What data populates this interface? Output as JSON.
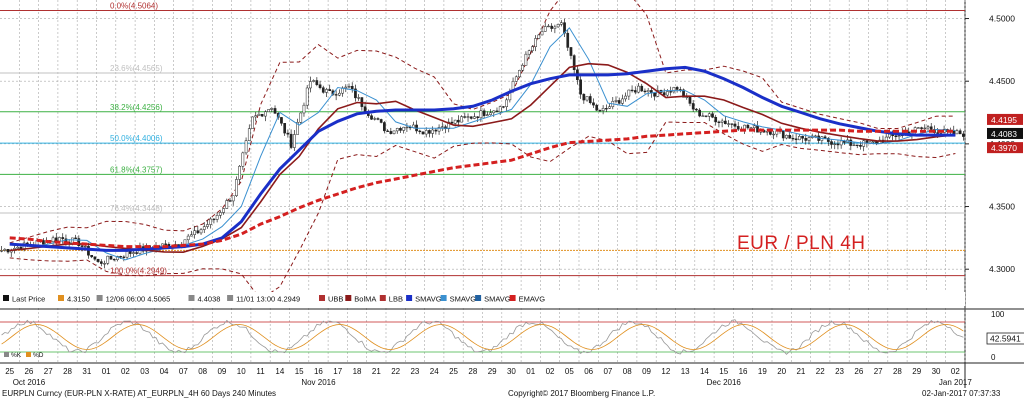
{
  "chart_data": {
    "type": "line",
    "title": "EUR / PLN 4H",
    "footer": {
      "left": "EURPLN Curncy (EUR-PLN X-RATE) AT_EURPLN_4H 60 Days 240 Minutes",
      "center": "Copyright© 2017 Bloomberg Finance L.P.",
      "right": "02-Jan-2017 07:37:33"
    },
    "ylim": [
      4.285,
      4.51
    ],
    "y_ticks": [
      "4.3000",
      "4.3500",
      "4.4000",
      "4.4500",
      "4.5000"
    ],
    "x_day_labels": [
      "25",
      "26",
      "27",
      "28",
      "31",
      "01",
      "02",
      "03",
      "04",
      "07",
      "08",
      "09",
      "10",
      "11",
      "14",
      "15",
      "16",
      "17",
      "18",
      "21",
      "22",
      "23",
      "24",
      "25",
      "28",
      "29",
      "30",
      "01",
      "02",
      "05",
      "06",
      "07",
      "08",
      "09",
      "12",
      "13",
      "14",
      "15",
      "16",
      "19",
      "20",
      "21",
      "22",
      "23",
      "26",
      "27",
      "28",
      "29",
      "30",
      "02"
    ],
    "x_month_labels": [
      {
        "label": "Oct 2016",
        "at": 1
      },
      {
        "label": "Nov 2016",
        "at": 16
      },
      {
        "label": "Dec 2016",
        "at": 37
      },
      {
        "label": "Jan 2017",
        "at": 49
      }
    ],
    "fib_levels": [
      {
        "label": "0.0%(4.5064)",
        "value": 4.5064,
        "color": "#b03030"
      },
      {
        "label": "23.6%(4.4565)",
        "value": 4.4565,
        "color": "#c0c0c0"
      },
      {
        "label": "38.2%(4.4256)",
        "value": 4.4256,
        "color": "#3cb043"
      },
      {
        "label": "50.0%(4.4006)",
        "value": 4.4006,
        "color": "#30b0e0"
      },
      {
        "label": "61.8%(4.3757)",
        "value": 4.3757,
        "color": "#3cb043"
      },
      {
        "label": "76.4%(4.3448)",
        "value": 4.3448,
        "color": "#c0c0c0"
      },
      {
        "label": "100.0%(4.2949)",
        "value": 4.2949,
        "color": "#b03030"
      }
    ],
    "hlines": [
      {
        "value": 4.315,
        "color": "#e09020"
      }
    ],
    "last_price_tags": [
      {
        "label": "4.4195",
        "value": 4.4195,
        "color": "#c02020"
      },
      {
        "label": "4.4083",
        "value": 4.4083,
        "color": "#101010"
      },
      {
        "label": "4.3970",
        "value": 4.397,
        "color": "#c02020"
      }
    ],
    "legend": [
      {
        "label": "Last Price",
        "color": "#111111"
      },
      {
        "label": "4.3150",
        "color": "#e09020"
      },
      {
        "label": "12/06 06:00  4.5065",
        "color": "#888888"
      },
      {
        "label": "4.4038",
        "color": "#888888"
      },
      {
        "label": "11/01 13:00  4.2949",
        "color": "#888888"
      },
      {
        "label": "UBB",
        "color": "#b03030"
      },
      {
        "label": "BolMA",
        "color": "#8b1a1a"
      },
      {
        "label": "LBB",
        "color": "#b03030"
      },
      {
        "label": "SMAVG",
        "color": "#1a2fc8"
      },
      {
        "label": "SMAVG",
        "color": "#3a90d0"
      },
      {
        "label": "SMAVG",
        "color": "#2060a0"
      },
      {
        "label": "EMAVG",
        "color": "#d42020"
      }
    ],
    "close_by_day": [
      4.315,
      4.318,
      4.322,
      4.325,
      4.321,
      4.305,
      4.31,
      4.315,
      4.318,
      4.32,
      4.328,
      4.34,
      4.36,
      4.42,
      4.43,
      4.4,
      4.45,
      4.44,
      4.445,
      4.425,
      4.41,
      4.415,
      4.41,
      4.415,
      4.42,
      4.425,
      4.43,
      4.465,
      4.49,
      4.495,
      4.44,
      4.425,
      4.435,
      4.445,
      4.44,
      4.445,
      4.425,
      4.42,
      4.415,
      4.412,
      4.41,
      4.405,
      4.404,
      4.402,
      4.4,
      4.4,
      4.405,
      4.41,
      4.413,
      4.4083
    ],
    "sma_slow_by_day": [
      4.32,
      4.319,
      4.318,
      4.317,
      4.316,
      4.315,
      4.315,
      4.316,
      4.317,
      4.318,
      4.32,
      4.325,
      4.338,
      4.36,
      4.38,
      4.395,
      4.41,
      4.418,
      4.424,
      4.426,
      4.427,
      4.427,
      4.427,
      4.428,
      4.43,
      4.435,
      4.442,
      4.448,
      4.452,
      4.455,
      4.455,
      4.455,
      4.456,
      4.458,
      4.46,
      4.461,
      4.458,
      4.452,
      4.445,
      4.437,
      4.43,
      4.425,
      4.42,
      4.416,
      4.413,
      4.41,
      4.408,
      4.407,
      4.407,
      4.407
    ],
    "ema_by_day": [
      4.325,
      4.324,
      4.322,
      4.321,
      4.32,
      4.319,
      4.318,
      4.318,
      4.318,
      4.319,
      4.32,
      4.323,
      4.328,
      4.336,
      4.342,
      4.349,
      4.355,
      4.36,
      4.365,
      4.369,
      4.372,
      4.375,
      4.378,
      4.381,
      4.383,
      4.385,
      4.387,
      4.392,
      4.397,
      4.401,
      4.402,
      4.403,
      4.404,
      4.406,
      4.407,
      4.408,
      4.409,
      4.41,
      4.411,
      4.411,
      4.411,
      4.411,
      4.411,
      4.411,
      4.41,
      4.41,
      4.41,
      4.41,
      4.41,
      4.41
    ],
    "sub_panel": {
      "indicator_value": "42.5941",
      "y_ticks": [
        "100",
        "0"
      ],
      "legend": [
        {
          "label": "%K",
          "color": "#888888"
        },
        {
          "label": "%D",
          "color": "#e09020"
        }
      ]
    }
  }
}
